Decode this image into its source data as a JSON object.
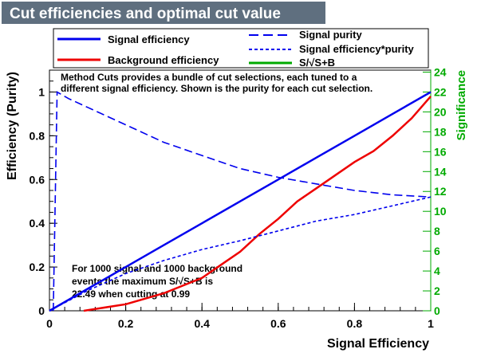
{
  "chart_data": {
    "type": "line",
    "title": "Cut efficiencies and optimal cut value",
    "xlabel": "Signal Efficiency",
    "ylabel": "Efficiency (Purity)",
    "y2label": "Significance",
    "xlim": [
      0,
      1
    ],
    "ylim": [
      0,
      1.1
    ],
    "y2lim": [
      0,
      24.2
    ],
    "xticks": [
      "0",
      "0.2",
      "0.4",
      "0.6",
      "0.8",
      "1"
    ],
    "yticks": [
      "0",
      "0.2",
      "0.4",
      "0.6",
      "0.8",
      "1"
    ],
    "y2ticks": [
      "0",
      "2",
      "4",
      "6",
      "8",
      "10",
      "12",
      "14",
      "16",
      "18",
      "20",
      "22",
      "24"
    ],
    "grid": false,
    "legend_position": "top",
    "legend": [
      {
        "label": "Signal efficiency",
        "color": "#0000ee",
        "style": "solid"
      },
      {
        "label": "Background efficiency",
        "color": "#ee0000",
        "style": "solid"
      },
      {
        "label": "Signal purity",
        "color": "#0000ee",
        "style": "long-dash"
      },
      {
        "label": "Signal efficiency*purity",
        "color": "#0000ee",
        "style": "short-dash"
      },
      {
        "label": "S/√S+B",
        "color": "#00aa00",
        "style": "solid"
      }
    ],
    "series": [
      {
        "name": "Signal efficiency",
        "x": [
          0.0,
          0.1,
          0.2,
          0.3,
          0.4,
          0.5,
          0.6,
          0.7,
          0.8,
          0.9,
          1.0
        ],
        "y": [
          0.0,
          0.1,
          0.2,
          0.3,
          0.4,
          0.5,
          0.6,
          0.7,
          0.8,
          0.9,
          1.0
        ]
      },
      {
        "name": "Background efficiency",
        "x": [
          0.09,
          0.2,
          0.3,
          0.4,
          0.45,
          0.5,
          0.55,
          0.6,
          0.65,
          0.7,
          0.75,
          0.8,
          0.85,
          0.9,
          0.95,
          1.0
        ],
        "y": [
          0.0,
          0.03,
          0.08,
          0.15,
          0.21,
          0.27,
          0.35,
          0.42,
          0.5,
          0.56,
          0.62,
          0.68,
          0.73,
          0.8,
          0.88,
          0.98
        ]
      },
      {
        "name": "Signal purity",
        "x": [
          0.01,
          0.02,
          0.05,
          0.1,
          0.2,
          0.3,
          0.4,
          0.5,
          0.6,
          0.7,
          0.8,
          0.9,
          1.0
        ],
        "y": [
          0.0,
          1.0,
          0.97,
          0.93,
          0.85,
          0.77,
          0.71,
          0.65,
          0.61,
          0.58,
          0.55,
          0.53,
          0.52
        ]
      },
      {
        "name": "Signal efficiency*purity",
        "x": [
          0.0,
          0.1,
          0.2,
          0.3,
          0.4,
          0.5,
          0.6,
          0.7,
          0.8,
          0.9,
          1.0
        ],
        "y": [
          0.0,
          0.092,
          0.17,
          0.23,
          0.28,
          0.32,
          0.365,
          0.41,
          0.44,
          0.48,
          0.52
        ]
      }
    ],
    "annotations": [
      "Method Cuts provides a bundle of cut selections, each tuned to a",
      "different signal efficiency. Shown is the purity for each cut selection."
    ],
    "result_text": [
      "For 1000 signal and 1000 background",
      "events the maximum S/√S+B is",
      "22.49 when cutting at  0.99"
    ]
  }
}
